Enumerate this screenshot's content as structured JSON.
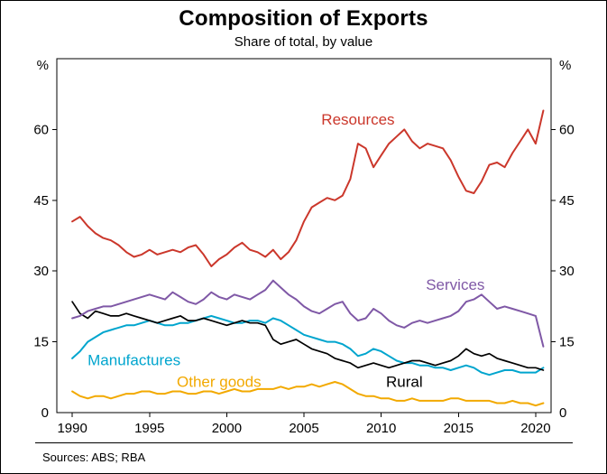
{
  "chart_data": {
    "type": "line",
    "title": "Composition of Exports",
    "subtitle": "Share of total, by value",
    "source": "Sources: ABS; RBA",
    "y_unit": "%",
    "xlabel": "",
    "ylabel": "%",
    "xlim": [
      1989,
      2021
    ],
    "ylim": [
      0,
      75
    ],
    "yticks": [
      0,
      15,
      30,
      45,
      60
    ],
    "xticks": [
      1990,
      1995,
      2000,
      2005,
      2010,
      2015,
      2020
    ],
    "grid": false,
    "legend_position": "inline-labels",
    "x": [
      1990,
      1990.5,
      1991,
      1991.5,
      1992,
      1992.5,
      1993,
      1993.5,
      1994,
      1994.5,
      1995,
      1995.5,
      1996,
      1996.5,
      1997,
      1997.5,
      1998,
      1998.5,
      1999,
      1999.5,
      2000,
      2000.5,
      2001,
      2001.5,
      2002,
      2002.5,
      2003,
      2003.5,
      2004,
      2004.5,
      2005,
      2005.5,
      2006,
      2006.5,
      2007,
      2007.5,
      2008,
      2008.5,
      2009,
      2009.5,
      2010,
      2010.5,
      2011,
      2011.5,
      2012,
      2012.5,
      2013,
      2013.5,
      2014,
      2014.5,
      2015,
      2015.5,
      2016,
      2016.5,
      2017,
      2017.5,
      2018,
      2018.5,
      2019,
      2019.5,
      2020,
      2020.5
    ],
    "series": [
      {
        "id": "other-goods",
        "name": "Other goods",
        "color": "#F2A900",
        "width": 2,
        "label_pos": [
          1999.5,
          5.5
        ],
        "values": [
          4.5,
          3.5,
          3,
          3.5,
          3.5,
          3,
          3.5,
          4,
          4,
          4.5,
          4.5,
          4,
          4,
          4.5,
          4.5,
          4,
          4,
          4.5,
          4.5,
          4,
          4.5,
          5,
          4.5,
          4.5,
          5,
          5,
          5,
          5.5,
          5,
          5.5,
          5.5,
          6,
          5.5,
          6,
          6.5,
          6,
          5,
          4,
          3.5,
          3.5,
          3,
          3,
          2.5,
          2.5,
          3,
          2.5,
          2.5,
          2.5,
          2.5,
          3,
          3,
          2.5,
          2.5,
          2.5,
          2.5,
          2,
          2,
          2.5,
          2,
          2,
          1.5,
          2
        ]
      },
      {
        "id": "manufactures",
        "name": "Manufactures",
        "color": "#00A5CE",
        "width": 2,
        "label_pos": [
          1994,
          10
        ],
        "values": [
          11.5,
          13,
          15,
          16,
          17,
          17.5,
          18,
          18.5,
          18.5,
          19,
          19.5,
          19,
          18.5,
          18.5,
          19,
          19,
          19.5,
          20,
          20.5,
          20,
          19.5,
          19,
          19,
          19.5,
          19.5,
          19,
          20,
          19.5,
          18.5,
          17.5,
          16.5,
          16,
          15.5,
          15,
          15,
          14.5,
          13.5,
          12,
          12.5,
          13.5,
          13,
          12,
          11,
          10.5,
          10.5,
          10,
          10,
          9.5,
          9.5,
          9,
          9.5,
          10,
          9.5,
          8.5,
          8,
          8.5,
          9,
          9,
          8.5,
          8.5,
          8.5,
          9.5
        ]
      },
      {
        "id": "rural",
        "name": "Rural",
        "color": "#000000",
        "width": 1.7,
        "label_pos": [
          2011.5,
          5.5
        ],
        "values": [
          23.5,
          21,
          20,
          21.5,
          21,
          20.5,
          20.5,
          21,
          20.5,
          20,
          19.5,
          19,
          19.5,
          20,
          20.5,
          19.5,
          19.5,
          20,
          19.5,
          19,
          18.5,
          19,
          19.5,
          19,
          19,
          18.5,
          15.5,
          14.5,
          15,
          15.5,
          14.5,
          13.5,
          13,
          12.5,
          11.5,
          11,
          10.5,
          9.5,
          10,
          10.5,
          10,
          9.5,
          10,
          10.5,
          11,
          11,
          10.5,
          10,
          10.5,
          11,
          12,
          13.5,
          12.5,
          12,
          12.5,
          11.5,
          11,
          10.5,
          10,
          9.5,
          9.5,
          9
        ]
      },
      {
        "id": "services",
        "name": "Services",
        "color": "#7F58A6",
        "width": 2,
        "label_pos": [
          2014.8,
          26
        ],
        "values": [
          20,
          20.5,
          21.5,
          22,
          22.5,
          22.5,
          23,
          23.5,
          24,
          24.5,
          25,
          24.5,
          24,
          25.5,
          24.5,
          23.5,
          23,
          24,
          25.5,
          24.5,
          24,
          25,
          24.5,
          24,
          25,
          26,
          28,
          26.5,
          25,
          24,
          22.5,
          21.5,
          21,
          22,
          23,
          23.5,
          21,
          19.5,
          20,
          22,
          21,
          19.5,
          18.5,
          18,
          19,
          19.5,
          19,
          19.5,
          20,
          20.5,
          21.5,
          23.5,
          24,
          25,
          23.5,
          22,
          22.5,
          22,
          21.5,
          21,
          20.5,
          14
        ]
      },
      {
        "id": "resources",
        "name": "Resources",
        "color": "#CB372B",
        "width": 2,
        "label_pos": [
          2008.5,
          61
        ],
        "values": [
          40.5,
          41.5,
          39.5,
          38,
          37,
          36.5,
          35.5,
          34,
          33,
          33.5,
          34.5,
          33.5,
          34,
          34.5,
          34,
          35,
          35.5,
          33.5,
          31,
          32.5,
          33.5,
          35,
          36,
          34.5,
          34,
          33,
          34.5,
          32.5,
          34,
          36.5,
          40.5,
          43.5,
          44.5,
          45.5,
          45,
          46,
          49.5,
          57,
          56,
          52,
          54.5,
          57,
          58.5,
          60,
          57.5,
          56,
          57,
          56.5,
          56,
          53.5,
          50,
          47,
          46.5,
          49,
          52.5,
          53,
          52,
          55,
          57.5,
          60,
          57,
          64
        ]
      }
    ]
  }
}
